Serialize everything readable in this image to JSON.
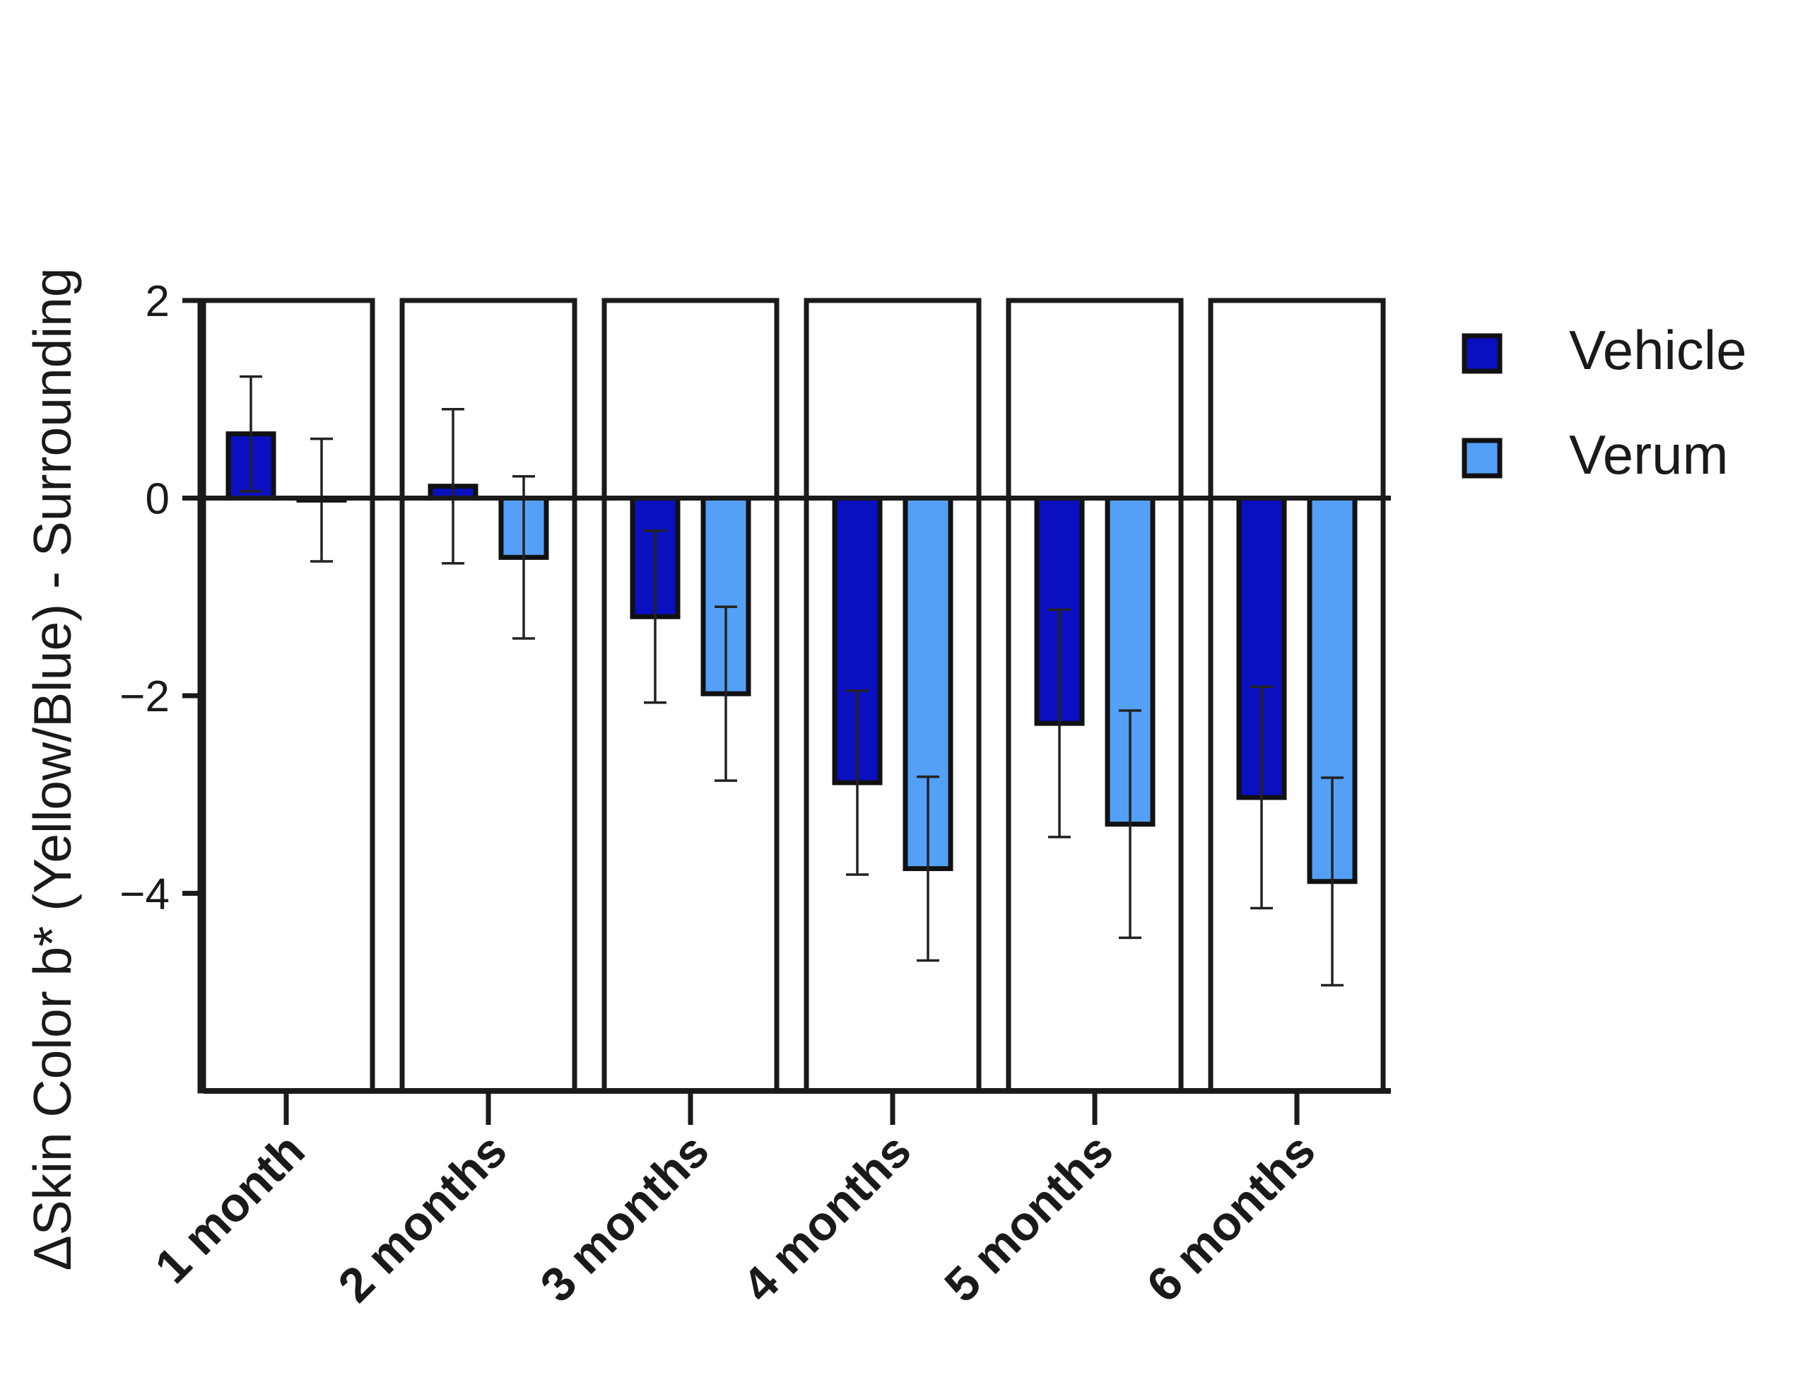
{
  "chart_data": {
    "type": "bar",
    "ylabel": "ΔSkin Color b* (Yellow/Blue) - Surrounding",
    "xlabel": "",
    "ylim": [
      -6,
      2
    ],
    "yticks": [
      2,
      0,
      -2,
      -4
    ],
    "ytick_labels": [
      "2",
      "0",
      "−2",
      "−4"
    ],
    "categories": [
      "1 month",
      "2 months",
      "3 months",
      "4 months",
      "5 months",
      "6 months"
    ],
    "series": [
      {
        "name": "Vehicle",
        "color": "#0a0fbf",
        "values": [
          0.65,
          0.12,
          -1.2,
          -2.88,
          -2.28,
          -3.03
        ],
        "errors": [
          0.58,
          0.78,
          0.87,
          0.93,
          1.15,
          1.12
        ]
      },
      {
        "name": "Verum",
        "color": "#55a0f7",
        "values": [
          -0.02,
          -0.6,
          -1.98,
          -3.75,
          -3.3,
          -3.88
        ],
        "errors": [
          0.62,
          0.82,
          0.88,
          0.93,
          1.15,
          1.05
        ]
      }
    ],
    "legend_position": "top-right",
    "grid": false,
    "panel_frames": true
  }
}
